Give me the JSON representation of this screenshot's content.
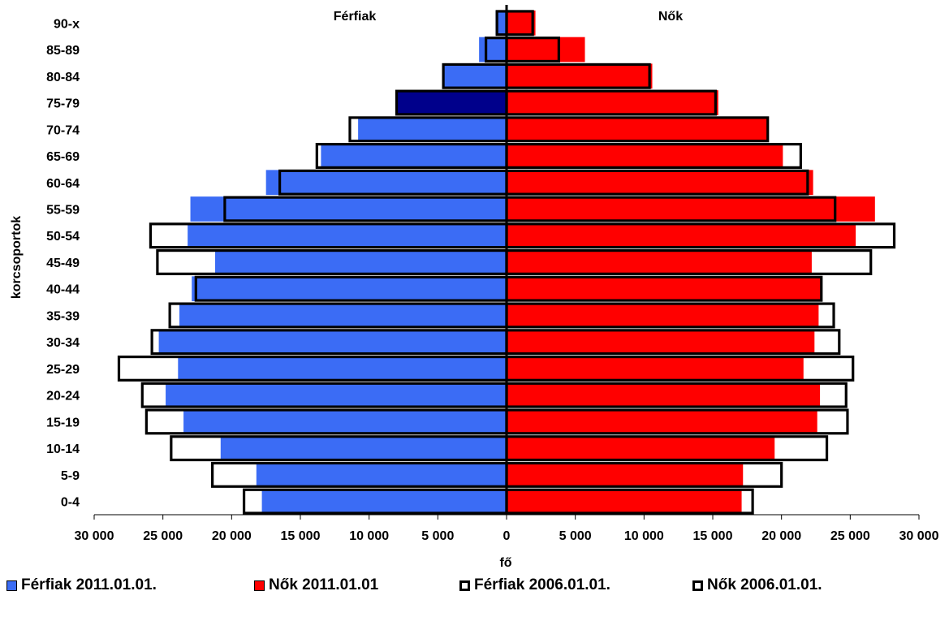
{
  "chart_data": {
    "type": "bar",
    "subtype": "population-pyramid",
    "side_labels": {
      "left": "Férfiak",
      "right": "Nők"
    },
    "xlabel": "fő",
    "ylabel": "korcsoportok",
    "xlim": [
      -30000,
      30000
    ],
    "x_ticks": [
      -30000,
      -25000,
      -20000,
      -15000,
      -10000,
      -5000,
      0,
      5000,
      10000,
      15000,
      20000,
      25000,
      30000
    ],
    "x_tick_labels": [
      "30 000",
      "25 000",
      "20 000",
      "15 000",
      "10 000",
      "5 000",
      "0",
      "5 000",
      "10 000",
      "15 000",
      "20 000",
      "25 000",
      "30 000"
    ],
    "categories": [
      "0-4",
      "5-9",
      "10-14",
      "15-19",
      "20-24",
      "25-29",
      "30-34",
      "35-39",
      "40-44",
      "45-49",
      "50-54",
      "55-59",
      "60-64",
      "65-69",
      "70-74",
      "75-79",
      "80-84",
      "85-89",
      "90-x"
    ],
    "series": [
      {
        "name": "Férfiak 2011.01.01.",
        "side": "left",
        "style": "filled",
        "color": "#3b6cf5",
        "values": [
          17800,
          18200,
          20800,
          23500,
          24800,
          23900,
          25300,
          23800,
          22900,
          21200,
          23200,
          23000,
          17500,
          13500,
          10800,
          8000,
          4600,
          2000,
          800
        ]
      },
      {
        "name": "Nők 2011.01.01",
        "side": "right",
        "style": "filled",
        "color": "#ff0000",
        "values": [
          17100,
          17200,
          19500,
          22600,
          22800,
          21600,
          22400,
          22700,
          22900,
          22200,
          25400,
          26800,
          22300,
          20100,
          19000,
          15400,
          10600,
          5700,
          2100
        ]
      },
      {
        "name": "Férfiak 2006.01.01.",
        "side": "left",
        "style": "outline",
        "color": "#000000",
        "values": [
          19100,
          21400,
          24400,
          26200,
          26500,
          28200,
          25800,
          24500,
          22600,
          25400,
          25900,
          20500,
          16500,
          13800,
          11400,
          8000,
          4600,
          1500,
          700
        ]
      },
      {
        "name": "Nők 2006.01.01.",
        "side": "right",
        "style": "outline",
        "color": "#000000",
        "values": [
          17900,
          20000,
          23300,
          24800,
          24700,
          25200,
          24200,
          23800,
          22900,
          26500,
          28200,
          23900,
          21900,
          21400,
          19000,
          15200,
          10400,
          3800,
          1900
        ]
      }
    ],
    "highlight": {
      "category": "75-79",
      "series": "Férfiak 2011.01.01.",
      "color": "#00008b"
    },
    "legend_position": "bottom",
    "grid": false
  }
}
